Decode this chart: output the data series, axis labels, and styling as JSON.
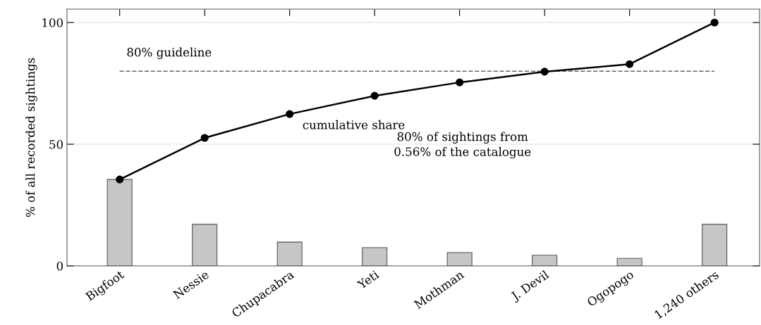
{
  "chart_data": {
    "type": "bar",
    "ylabel": "% of all recorded sightings",
    "categories": [
      "Bigfoot",
      "Nessie",
      "Chupacabra",
      "Yeti",
      "Mothman",
      "J. Devil",
      "Ogopogo",
      "1,240 others"
    ],
    "series": [
      {
        "color": "#c6c6c6",
        "values": [
          35.5,
          17.1,
          9.8,
          7.5,
          5.5,
          4.4,
          3.1,
          17.1
        ]
      },
      {
        "type": "line",
        "name": "cumulative share",
        "color": "#000000",
        "values": [
          35.5,
          52.6,
          62.4,
          69.9,
          75.4,
          79.8,
          82.9,
          100
        ]
      }
    ],
    "ylim": [
      0,
      105.5
    ],
    "yticks": [
      0,
      50,
      100
    ],
    "grid": "y",
    "marker": "circle",
    "line_style": "solid",
    "ref_lines": [
      {
        "axis": "y",
        "value": 80,
        "label": "80% guideline",
        "color": "#666666",
        "line_style": "dashed"
      }
    ],
    "annotations": [
      "80% of sightings from\n0.56% of the catalogue"
    ]
  }
}
